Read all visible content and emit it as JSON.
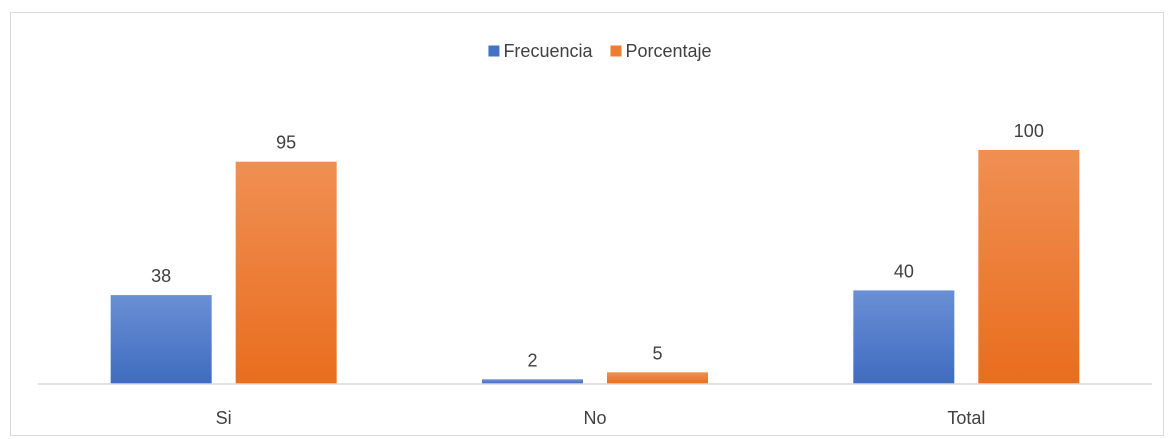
{
  "chart_data": {
    "type": "bar",
    "categories": [
      "Si",
      "No",
      "Total"
    ],
    "series": [
      {
        "name": "Frecuencia",
        "values": [
          38,
          2,
          40
        ],
        "color": "#4472c4"
      },
      {
        "name": "Porcentaje",
        "values": [
          95,
          5,
          100
        ],
        "color": "#ed7d31"
      }
    ],
    "title": "",
    "xlabel": "",
    "ylabel": "",
    "ylim": [
      0,
      100
    ],
    "grid": false,
    "legend": "top"
  }
}
